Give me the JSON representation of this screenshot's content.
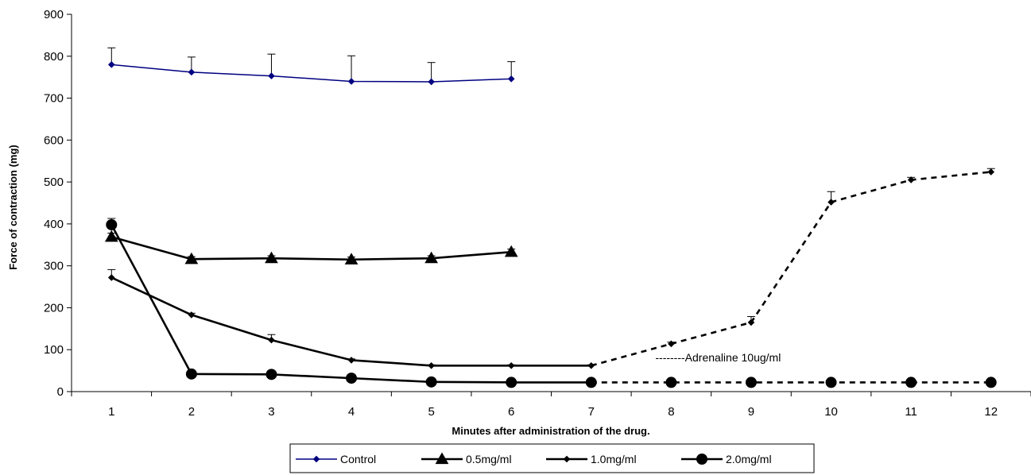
{
  "chart_data": {
    "type": "line",
    "title": "",
    "xlabel": "Minutes after administration of the drug.",
    "ylabel": "Force of contraction (mg)",
    "x": [
      1,
      2,
      3,
      4,
      5,
      6,
      7,
      8,
      9,
      10,
      11,
      12
    ],
    "xlim": [
      0.5,
      12.5
    ],
    "ylim": [
      0,
      900
    ],
    "yticks": [
      0,
      100,
      200,
      300,
      400,
      500,
      600,
      700,
      800,
      900
    ],
    "grid": false,
    "legend_position": "bottom",
    "annotation": {
      "text": "--------Adrenaline 10ug/ml",
      "x": 8,
      "y": 70
    },
    "series": [
      {
        "name": "Control",
        "color": "#000080",
        "marker": "diamond",
        "x": [
          1,
          2,
          3,
          4,
          5,
          6
        ],
        "y": [
          780,
          762,
          753,
          740,
          739,
          746
        ],
        "error_upper": [
          820,
          798,
          805,
          801,
          785,
          787
        ],
        "segments": [
          {
            "from": 1,
            "to": 6,
            "style": "solid"
          }
        ]
      },
      {
        "name": "0.5mg/ml",
        "color": "#000000",
        "marker": "triangle",
        "x": [
          1,
          2,
          3,
          4,
          5,
          6
        ],
        "y": [
          369,
          316,
          318,
          315,
          318,
          333
        ],
        "error_upper": [
          378,
          322,
          324,
          321,
          324,
          340
        ],
        "segments": [
          {
            "from": 1,
            "to": 6,
            "style": "solid"
          }
        ]
      },
      {
        "name": "1.0mg/ml",
        "color": "#000000",
        "marker": "diamond",
        "x": [
          1,
          2,
          3,
          4,
          5,
          6,
          7,
          8,
          9,
          10,
          11,
          12
        ],
        "y": [
          272,
          183,
          123,
          75,
          62,
          62,
          62,
          114,
          165,
          452,
          505,
          524
        ],
        "error_upper": [
          291,
          187,
          136,
          78,
          64,
          64,
          64,
          118,
          179,
          477,
          511,
          532
        ],
        "segments": [
          {
            "from": 1,
            "to": 7,
            "style": "solid"
          },
          {
            "from": 7,
            "to": 12,
            "style": "dashed"
          }
        ]
      },
      {
        "name": "2.0mg/ml",
        "color": "#000000",
        "marker": "circle",
        "x": [
          1,
          2,
          3,
          4,
          5,
          6,
          7,
          8,
          9,
          10,
          11,
          12
        ],
        "y": [
          398,
          42,
          41,
          32,
          23,
          22,
          22,
          22,
          22,
          22,
          22,
          22
        ],
        "error_upper": [
          413,
          44,
          43,
          34,
          25,
          24,
          24,
          24,
          24,
          24,
          24,
          24
        ],
        "segments": [
          {
            "from": 1,
            "to": 7,
            "style": "solid"
          },
          {
            "from": 7,
            "to": 12,
            "style": "dashed"
          }
        ]
      }
    ]
  }
}
